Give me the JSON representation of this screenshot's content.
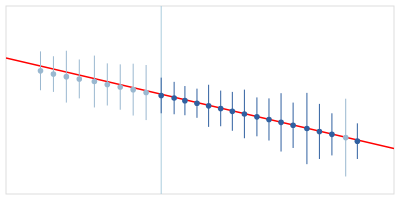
{
  "chart_data": {
    "type": "scatter",
    "tick_labels": false,
    "xlim": [
      -0.05,
      0.85
    ],
    "ylim": [
      0.2,
      0.78
    ],
    "series": [
      {
        "type": "scatter",
        "x": [
          0.03,
          0.06,
          0.09,
          0.12,
          0.155,
          0.185,
          0.215,
          0.245,
          0.275,
          0.31,
          0.34,
          0.365,
          0.393,
          0.42,
          0.448,
          0.475,
          0.503,
          0.532,
          0.56,
          0.588,
          0.616,
          0.648,
          0.677,
          0.706,
          0.738,
          0.765
        ],
        "values": [
          0.58,
          0.57,
          0.562,
          0.555,
          0.547,
          0.538,
          0.53,
          0.522,
          0.513,
          0.504,
          0.496,
          0.488,
          0.48,
          0.472,
          0.464,
          0.455,
          0.447,
          0.438,
          0.43,
          0.421,
          0.412,
          0.402,
          0.393,
          0.384,
          0.374,
          0.363
        ],
        "errors": [
          0.06,
          0.055,
          0.08,
          0.06,
          0.08,
          0.065,
          0.07,
          0.08,
          0.085,
          0.055,
          0.05,
          0.045,
          0.045,
          0.065,
          0.055,
          0.06,
          0.075,
          0.06,
          0.065,
          0.09,
          0.07,
          0.11,
          0.085,
          0.065,
          0.12,
          0.055
        ],
        "colors": [
          "#9ab8d0",
          "#9ab8d0",
          "#9ab8d0",
          "#9ab8d0",
          "#9ab8d0",
          "#9ab8d0",
          "#9ab8d0",
          "#9ab8d0",
          "#9ab8d0",
          "#3060a0",
          "#3060a0",
          "#3060a0",
          "#3060a0",
          "#3060a0",
          "#3060a0",
          "#3060a0",
          "#3060a0",
          "#3060a0",
          "#3060a0",
          "#3060a0",
          "#3060a0",
          "#3060a0",
          "#3060a0",
          "#3060a0",
          "#9ab8d0",
          "#3060a0"
        ]
      },
      {
        "type": "line",
        "x": [
          -0.05,
          0.85
        ],
        "values": [
          0.62,
          0.34
        ],
        "color": "#ff0000"
      }
    ],
    "vlines": [
      {
        "x": 0.31,
        "color": "#aaccdd"
      }
    ]
  }
}
